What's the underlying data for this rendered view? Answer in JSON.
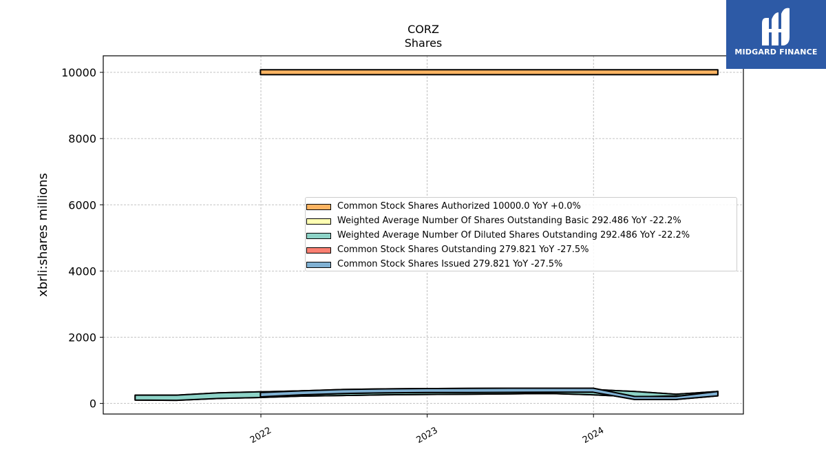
{
  "chart_data": {
    "type": "area",
    "title": "CORZ",
    "subtitle": "Shares",
    "ylabel": "xbrli:shares millions",
    "xlabel": "",
    "xlim": [
      "2021-01-20",
      "2024-11-25"
    ],
    "ylim": [
      -320,
      10500
    ],
    "x_ticks": [
      "2022",
      "2023",
      "2024"
    ],
    "y_ticks": [
      0,
      2000,
      4000,
      6000,
      8000,
      10000
    ],
    "grid": true,
    "legend_position": "center-right",
    "series": [
      {
        "name": "Common Stock Shares Authorized",
        "legend_label": "Common Stock Shares Authorized  10000.0 YoY +0.0%",
        "color": "#fdb462",
        "x": [
          "2021-12-31",
          "2024-09-30"
        ],
        "lower": [
          9930,
          9930
        ],
        "upper": [
          10080,
          10080
        ]
      },
      {
        "name": "Weighted Average Number Of Shares Outstanding Basic",
        "legend_label": "Weighted Average Number Of Shares Outstanding Basic  292.486 YoY -22.2%",
        "color": "#ffffb3",
        "x": [
          "2021-03-31",
          "2021-06-30",
          "2021-09-30",
          "2021-12-31",
          "2022-03-31",
          "2022-06-30",
          "2022-09-30",
          "2022-12-31",
          "2023-03-31",
          "2023-06-30",
          "2023-09-30",
          "2023-12-31",
          "2024-03-31",
          "2024-06-30",
          "2024-09-30"
        ],
        "lower": [
          100,
          95,
          150,
          180,
          220,
          240,
          260,
          270,
          280,
          290,
          300,
          260,
          200,
          230,
          260
        ],
        "upper": [
          250,
          250,
          320,
          350,
          380,
          390,
          400,
          410,
          420,
          420,
          420,
          420,
          360,
          280,
          360
        ]
      },
      {
        "name": "Weighted Average Number Of Diluted Shares Outstanding",
        "legend_label": "Weighted Average Number Of Diluted Shares Outstanding  292.486 YoY -22.2%",
        "color": "#8dd3c7",
        "x": [
          "2021-03-31",
          "2021-06-30",
          "2021-09-30",
          "2021-12-31",
          "2022-03-31",
          "2022-06-30",
          "2022-09-30",
          "2022-12-31",
          "2023-03-31",
          "2023-06-30",
          "2023-09-30",
          "2023-12-31",
          "2024-03-31",
          "2024-06-30",
          "2024-09-30"
        ],
        "lower": [
          100,
          95,
          150,
          180,
          220,
          240,
          260,
          270,
          280,
          290,
          300,
          260,
          200,
          230,
          260
        ],
        "upper": [
          250,
          250,
          320,
          350,
          380,
          390,
          400,
          410,
          420,
          420,
          420,
          420,
          360,
          280,
          360
        ]
      },
      {
        "name": "Common Stock Shares Outstanding",
        "legend_label": "Common Stock Shares Outstanding  279.821 YoY -27.5%",
        "color": "#fb8072",
        "x": [
          "2021-12-31",
          "2022-03-31",
          "2022-06-30",
          "2022-09-30",
          "2022-12-31",
          "2023-03-31",
          "2023-06-30",
          "2023-09-30",
          "2023-12-31",
          "2024-03-31",
          "2024-06-30",
          "2024-09-30"
        ],
        "lower": [
          200,
          260,
          300,
          320,
          330,
          330,
          335,
          340,
          340,
          120,
          120,
          230
        ],
        "upper": [
          330,
          380,
          420,
          440,
          450,
          455,
          460,
          460,
          460,
          210,
          210,
          360
        ]
      },
      {
        "name": "Common Stock Shares Issued",
        "legend_label": "Common Stock Shares Issued  279.821 YoY -27.5%",
        "color": "#80b1d3",
        "x": [
          "2021-12-31",
          "2022-03-31",
          "2022-06-30",
          "2022-09-30",
          "2022-12-31",
          "2023-03-31",
          "2023-06-30",
          "2023-09-30",
          "2023-12-31",
          "2024-03-31",
          "2024-06-30",
          "2024-09-30"
        ],
        "lower": [
          200,
          260,
          300,
          320,
          330,
          330,
          335,
          340,
          340,
          120,
          120,
          230
        ],
        "upper": [
          330,
          380,
          420,
          440,
          450,
          455,
          460,
          460,
          460,
          210,
          210,
          360
        ]
      }
    ]
  },
  "logo": {
    "text": "MIDGARD FINANCE",
    "background": "#2d5aa6"
  }
}
